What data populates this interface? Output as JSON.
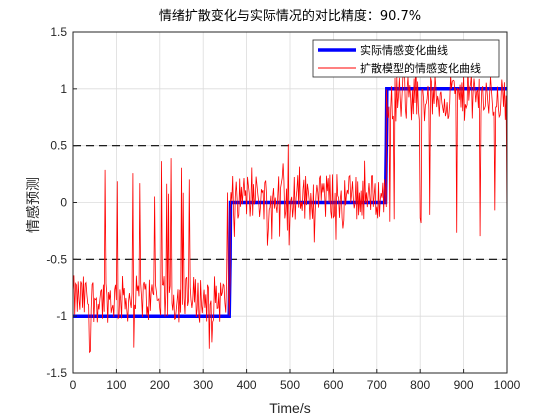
{
  "chart_data": {
    "type": "line",
    "title": "情绪扩散变化与实际情况的对比精度：90.7%",
    "xlabel": "Time/s",
    "ylabel": "情感预测",
    "xlim": [
      0,
      1000
    ],
    "ylim": [
      -1.5,
      1.5
    ],
    "xticks": [
      "0",
      "100",
      "200",
      "300",
      "400",
      "500",
      "600",
      "700",
      "800",
      "900",
      "1000"
    ],
    "yticks": [
      "-1.5",
      "-1",
      "-0.5",
      "0",
      "0.5",
      "1",
      "1.5"
    ],
    "grid": true,
    "legend_position": "top-right",
    "reference_lines": [
      0.5,
      -0.5
    ],
    "series": [
      {
        "name": "实际情感变化曲线",
        "color": "#0000ff",
        "x": [
          0,
          360,
          362,
          363,
          365,
          720,
          722,
          723,
          725,
          1000
        ],
        "values": [
          -1,
          -1,
          -0.5,
          0,
          0,
          0,
          0.5,
          1,
          1,
          1
        ]
      },
      {
        "name": "扩散模型的情感变化曲线",
        "color": "#ff0000",
        "segments": [
          {
            "x_start": 0,
            "x_end": 362,
            "mean": -0.85,
            "low": -1.38,
            "high": 0.4
          },
          {
            "x_start": 362,
            "x_end": 722,
            "mean": 0.05,
            "low": -0.38,
            "high": 0.55
          },
          {
            "x_start": 722,
            "x_end": 1000,
            "mean": 0.92,
            "low": -0.3,
            "high": 1.32
          }
        ]
      }
    ]
  },
  "colors": {
    "actual_line": "#0000ff",
    "model_line": "#ff0000",
    "reference_line": "#000000",
    "grid": "#dcdcdc",
    "axis": "#262626"
  }
}
